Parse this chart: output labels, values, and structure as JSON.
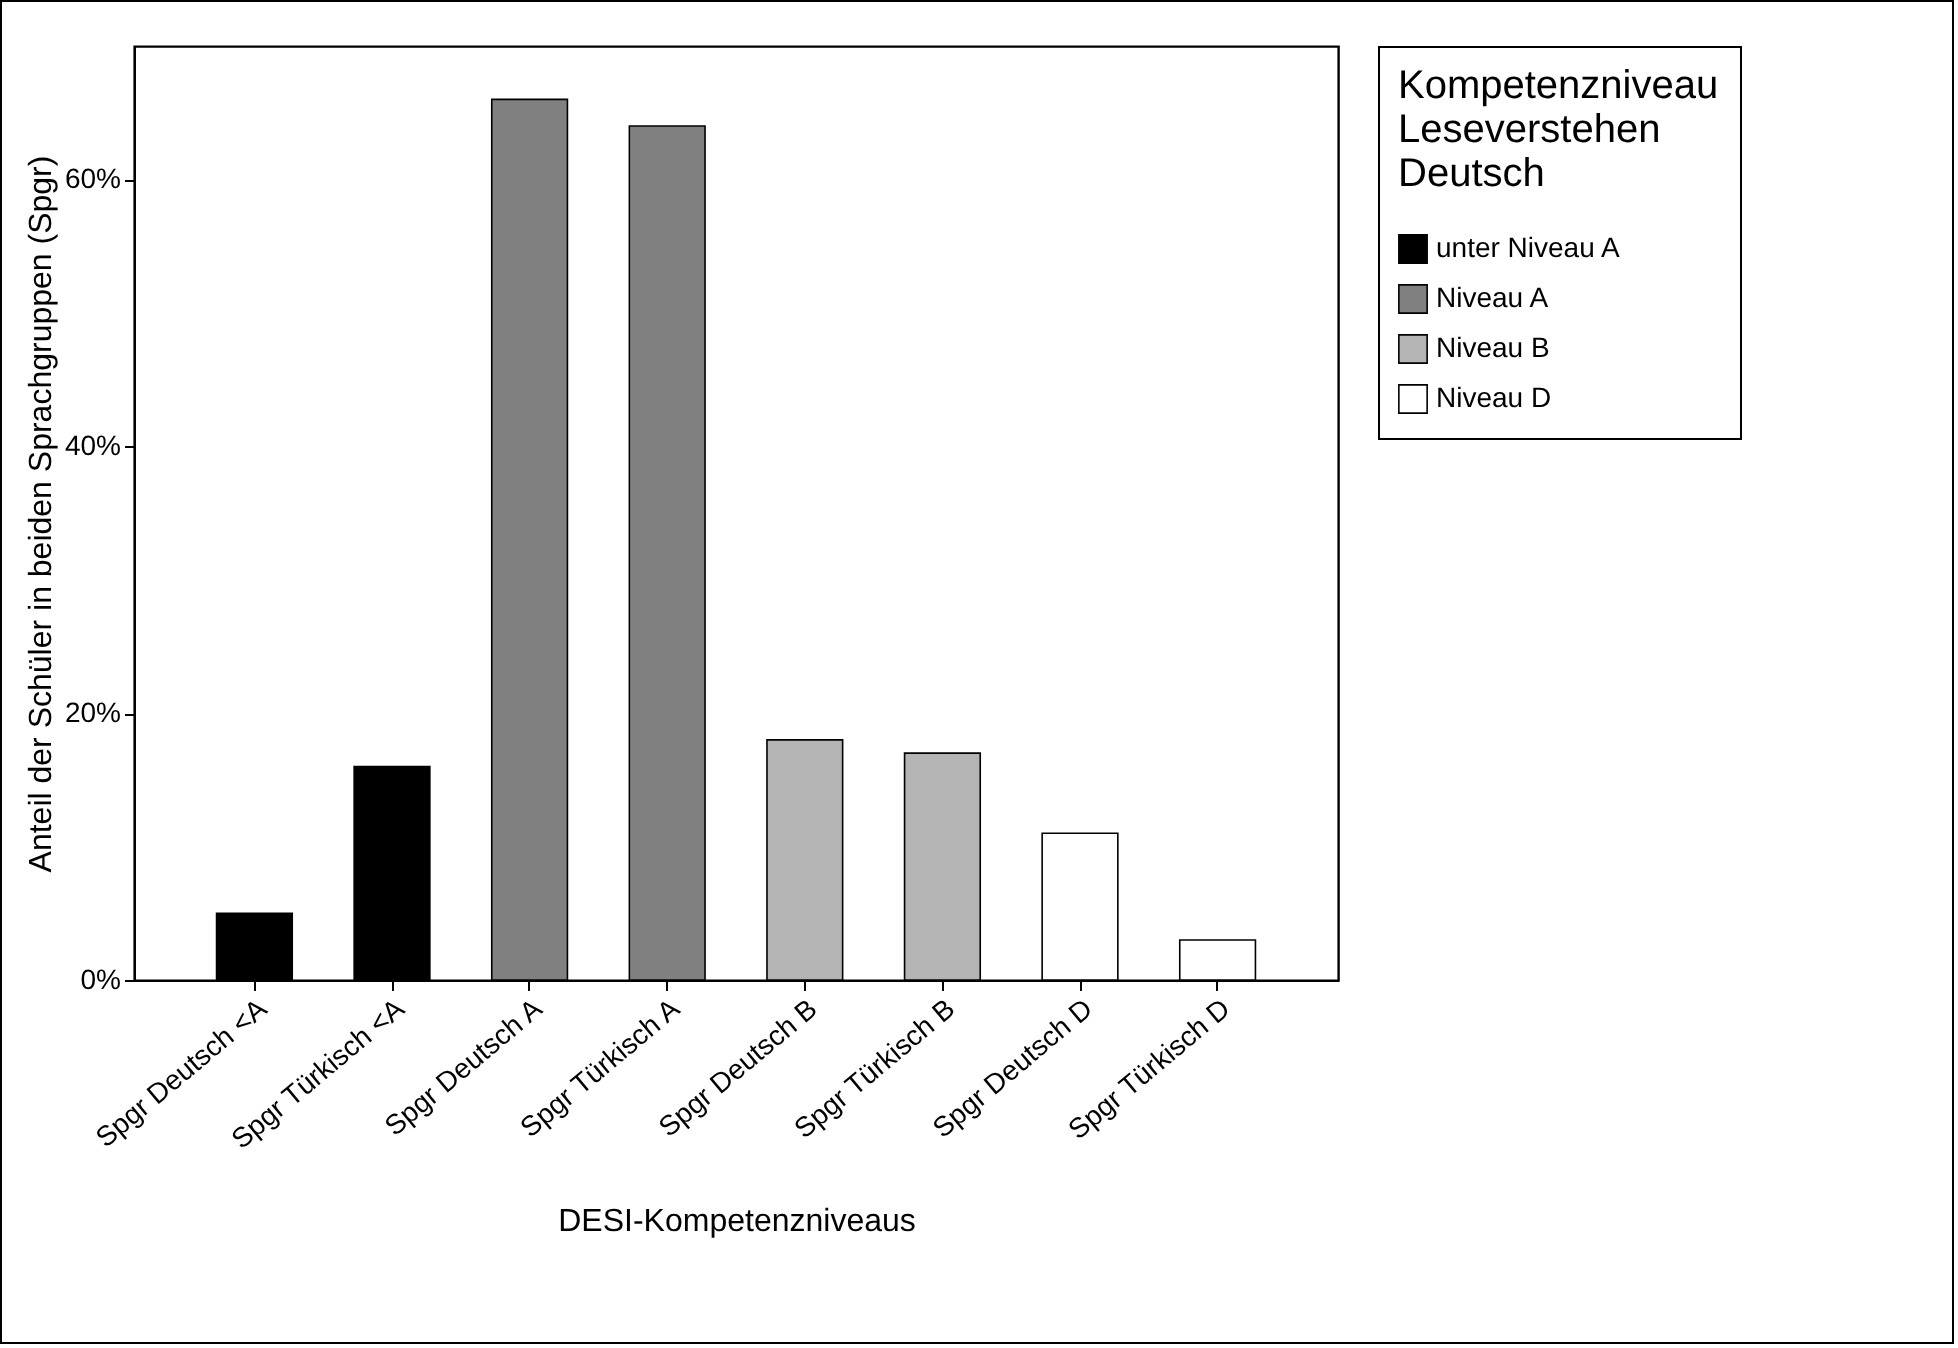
{
  "chart_data": {
    "type": "bar",
    "xlabel": "DESI-Kompetenzniveaus",
    "ylabel": "Anteil der Schüler in beiden Sprachgruppen (Spgr)",
    "legend_title": "Kompetenzniveau Leseverstehen Deutsch",
    "legend": "right",
    "grid": false,
    "categories": [
      "Spgr Deutsch <A",
      "Spgr Türkisch <A",
      "Spgr Deutsch A",
      "Spgr Türkisch A",
      "Spgr Deutsch B",
      "Spgr Türkisch B",
      "Spgr Deutsch D",
      "Spgr Türkisch D"
    ],
    "ylim": [
      0,
      70
    ],
    "yticks": [
      {
        "value": 0,
        "label": "0%"
      },
      {
        "value": 20,
        "label": "20%"
      },
      {
        "value": 40,
        "label": "40%"
      },
      {
        "value": 60,
        "label": "60%"
      }
    ],
    "series": [
      {
        "name": "unter Niveau A",
        "color": "#000000",
        "values": [
          5,
          16,
          null,
          null,
          null,
          null,
          null,
          null
        ]
      },
      {
        "name": "Niveau A",
        "color": "#808080",
        "values": [
          null,
          null,
          66,
          64,
          null,
          null,
          null,
          null
        ]
      },
      {
        "name": "Niveau B",
        "color": "#b4b4b4",
        "values": [
          null,
          null,
          null,
          null,
          18,
          17,
          null,
          null
        ]
      },
      {
        "name": "Niveau D",
        "color": "#ffffff",
        "values": [
          null,
          null,
          null,
          null,
          null,
          null,
          11,
          3
        ]
      }
    ]
  }
}
